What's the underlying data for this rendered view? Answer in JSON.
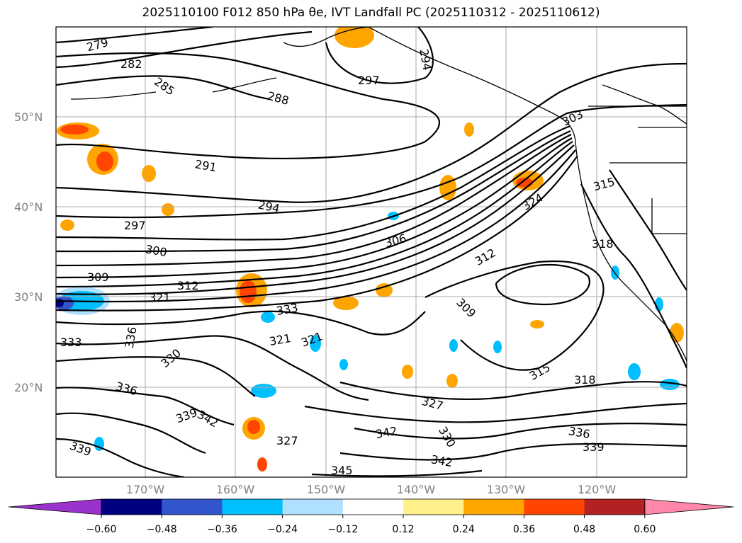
{
  "title": "2025110100 F012 850 hPa θe, IVT Landfall PC (2025110312 - 2025110612)",
  "map": {
    "lat_labels": [
      "50°N",
      "40°N",
      "30°N",
      "20°N"
    ],
    "lon_labels": [
      "170°W",
      "160°W",
      "150°W",
      "140°W",
      "130°W",
      "120°W"
    ],
    "grid": true
  },
  "contour_labels": [
    "279",
    "282",
    "285",
    "288",
    "291",
    "294",
    "297",
    "297",
    "294",
    "300",
    "303",
    "306",
    "309",
    "309",
    "312",
    "312",
    "315",
    "315",
    "318",
    "318",
    "321",
    "321",
    "321",
    "324",
    "327",
    "327",
    "330",
    "330",
    "333",
    "333",
    "336",
    "336",
    "336",
    "339",
    "339",
    "339",
    "342",
    "342",
    "342",
    "345"
  ],
  "colorbar": {
    "ticks": [
      "−0.60",
      "−0.48",
      "−0.36",
      "−0.24",
      "−0.12",
      "0.12",
      "0.24",
      "0.36",
      "0.48",
      "0.60"
    ],
    "colors": [
      "#9a33cc",
      "#000080",
      "#3355cc",
      "#00bfff",
      "#b0e0ff",
      "#ffffff",
      "#fff08c",
      "#ffa500",
      "#ff4500",
      "#b22222",
      "#ff88aa"
    ]
  }
}
